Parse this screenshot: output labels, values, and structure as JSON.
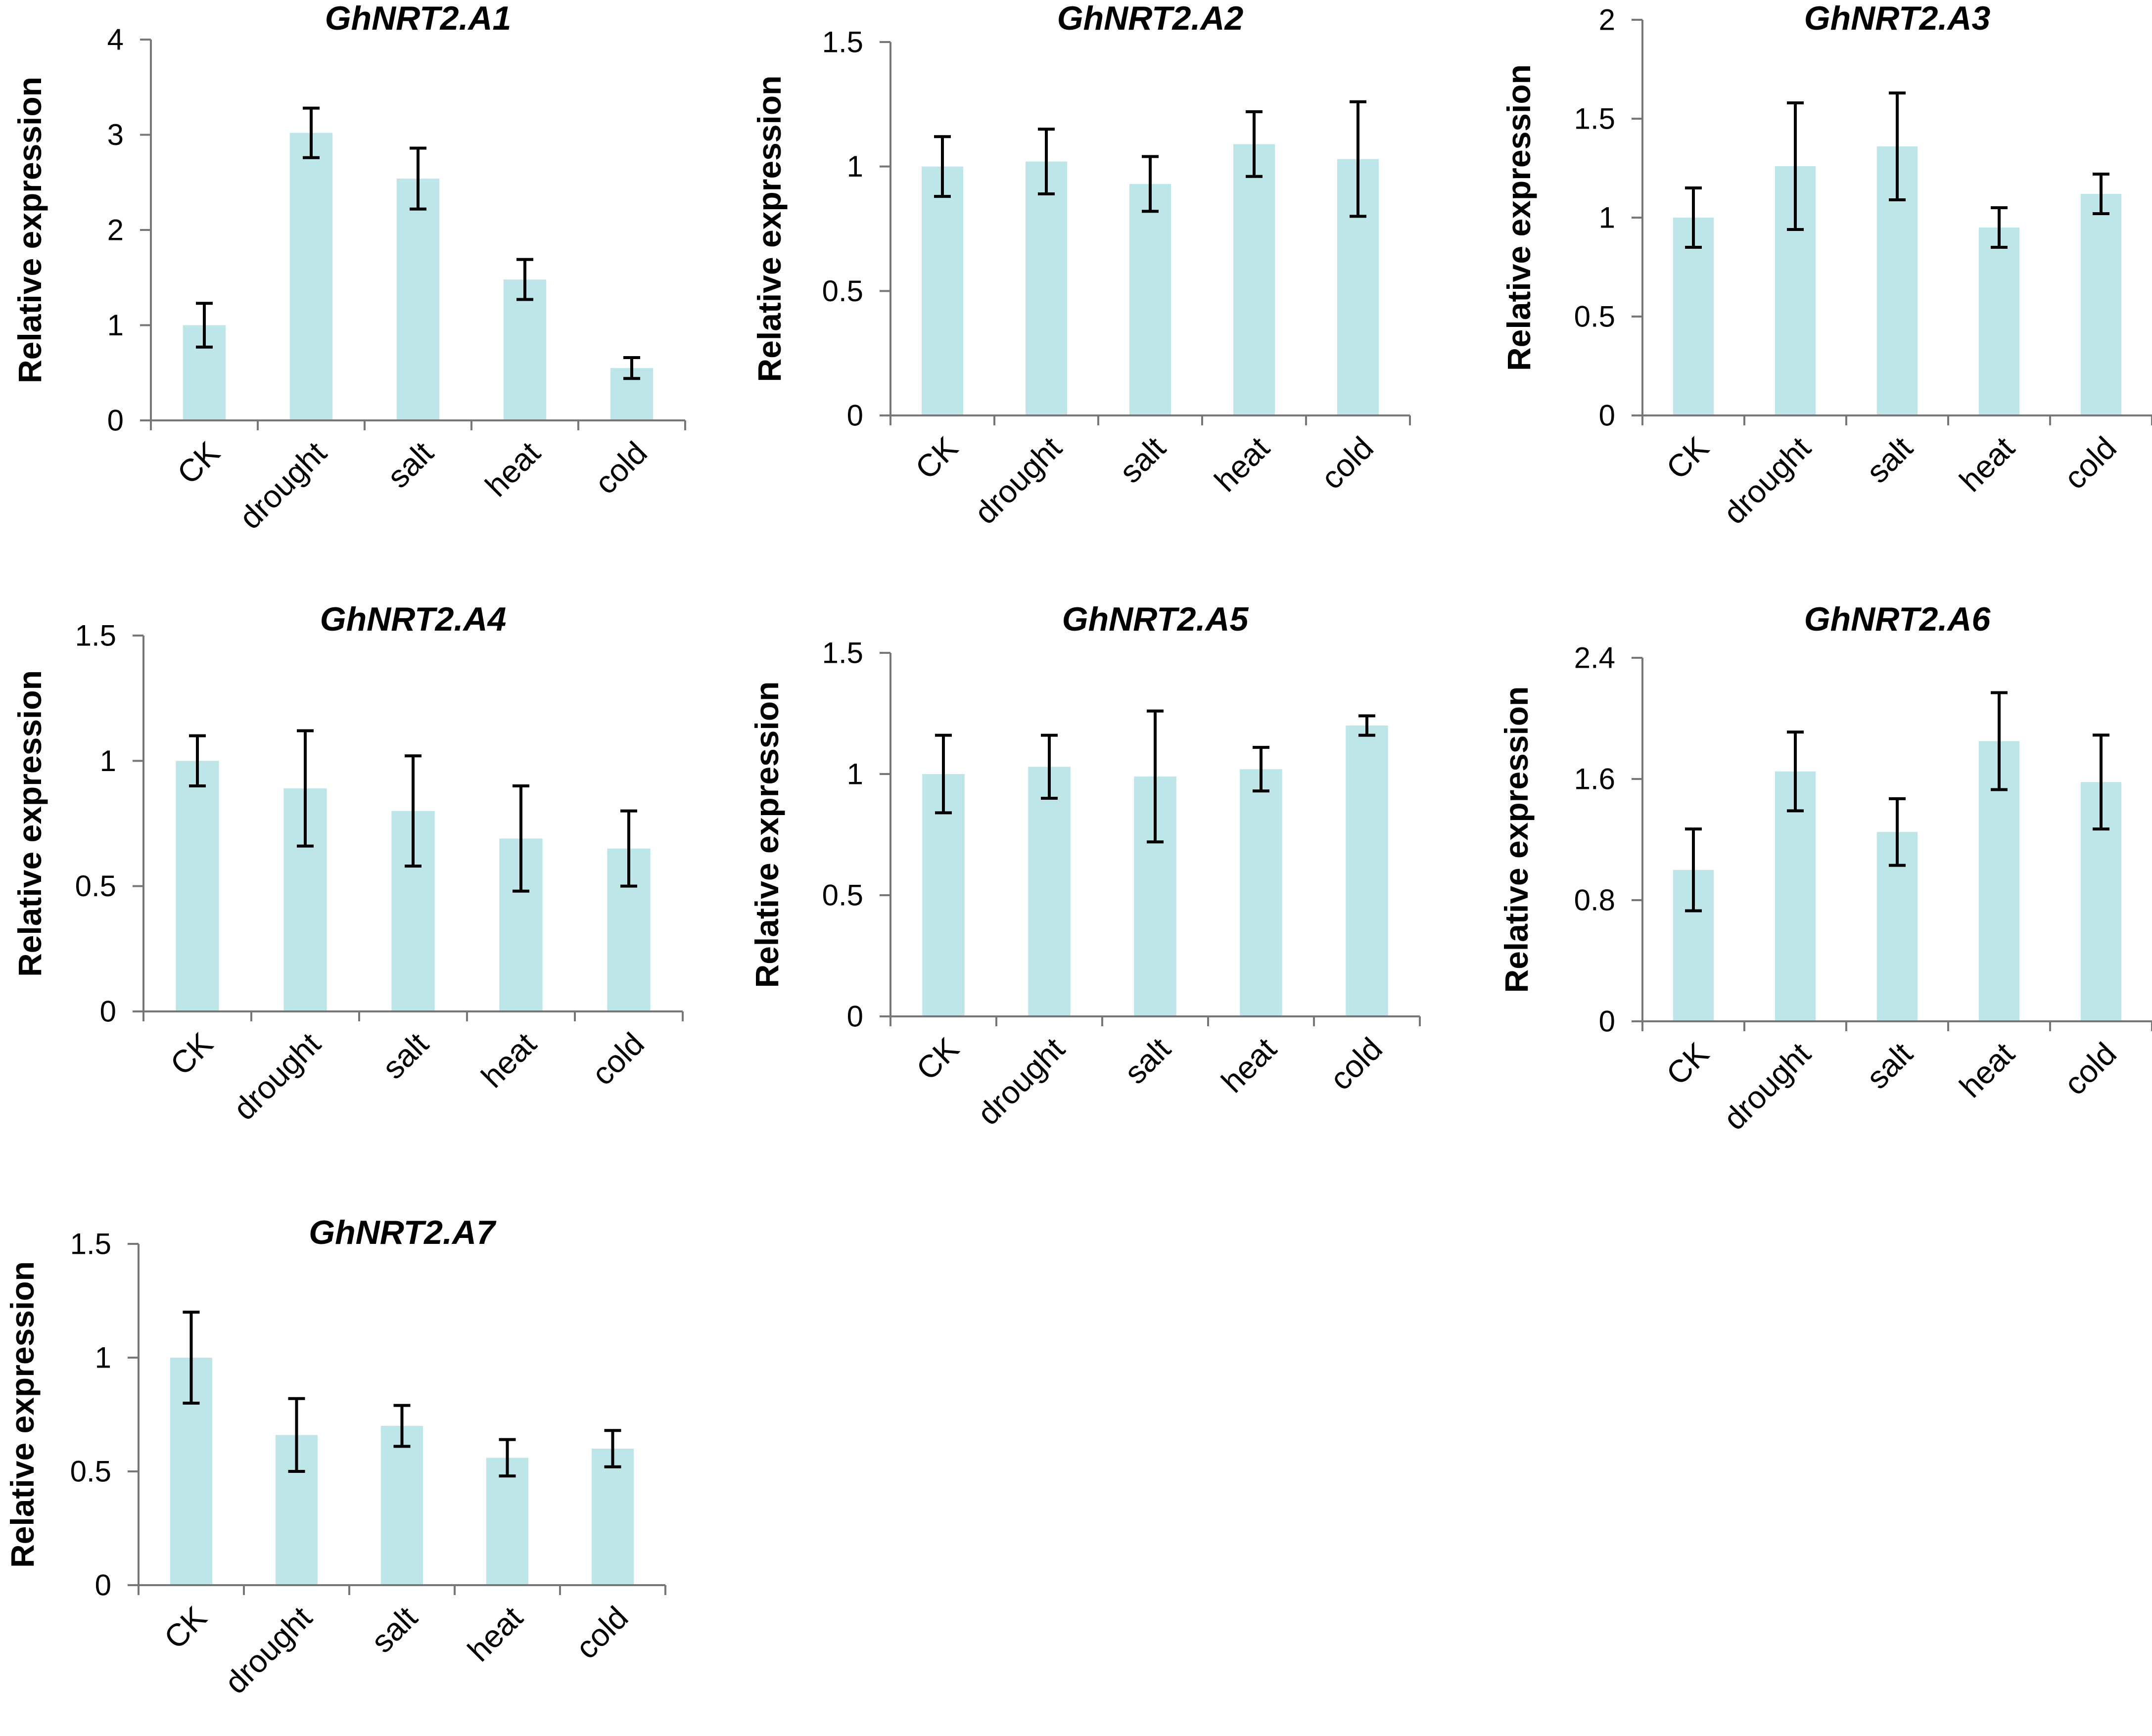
{
  "figure": {
    "bar_color": "#bee6e9",
    "axis_color": "#777777",
    "error_color": "#000000",
    "text_color": "#000000"
  },
  "chart_data": [
    {
      "type": "bar",
      "title": "GhNRT2.A1",
      "xlabel": "",
      "ylabel": "Relative expression",
      "categories": [
        "CK",
        "drought",
        "salt",
        "heat",
        "cold"
      ],
      "values": [
        1.0,
        3.02,
        2.54,
        1.48,
        0.55
      ],
      "errors": [
        0.23,
        0.26,
        0.32,
        0.21,
        0.11
      ],
      "ylim": [
        0,
        4
      ],
      "yticks": [
        0,
        1,
        2,
        3,
        4
      ],
      "ytick_labels": [
        "0",
        "1",
        "2",
        "3",
        "4"
      ]
    },
    {
      "type": "bar",
      "title": "GhNRT2.A2",
      "xlabel": "",
      "ylabel": "Relative expression",
      "categories": [
        "CK",
        "drought",
        "salt",
        "heat",
        "cold"
      ],
      "values": [
        1.0,
        1.02,
        0.93,
        1.09,
        1.03
      ],
      "errors": [
        0.12,
        0.13,
        0.11,
        0.13,
        0.23
      ],
      "ylim": [
        0,
        1.5
      ],
      "yticks": [
        0,
        0.5,
        1,
        1.5
      ],
      "ytick_labels": [
        "0",
        "0.5",
        "1",
        "1.5"
      ]
    },
    {
      "type": "bar",
      "title": "GhNRT2.A3",
      "xlabel": "",
      "ylabel": "Relative expression",
      "categories": [
        "CK",
        "drought",
        "salt",
        "heat",
        "cold"
      ],
      "values": [
        1.0,
        1.26,
        1.36,
        0.95,
        1.12
      ],
      "errors": [
        0.15,
        0.32,
        0.27,
        0.1,
        0.1
      ],
      "ylim": [
        0,
        2
      ],
      "yticks": [
        0,
        0.5,
        1,
        1.5,
        2
      ],
      "ytick_labels": [
        "0",
        "0.5",
        "1",
        "1.5",
        "2"
      ]
    },
    {
      "type": "bar",
      "title": "GhNRT2.A4",
      "xlabel": "",
      "ylabel": "Relative expression",
      "categories": [
        "CK",
        "drought",
        "salt",
        "heat",
        "cold"
      ],
      "values": [
        1.0,
        0.89,
        0.8,
        0.69,
        0.65
      ],
      "errors": [
        0.1,
        0.23,
        0.22,
        0.21,
        0.15
      ],
      "ylim": [
        0,
        1.5
      ],
      "yticks": [
        0,
        0.5,
        1,
        1.5
      ],
      "ytick_labels": [
        "0",
        "0.5",
        "1",
        "1.5"
      ]
    },
    {
      "type": "bar",
      "title": "GhNRT2.A5",
      "xlabel": "",
      "ylabel": "Relative expression",
      "categories": [
        "CK",
        "drought",
        "salt",
        "heat",
        "cold"
      ],
      "values": [
        1.0,
        1.03,
        0.99,
        1.02,
        1.2
      ],
      "errors": [
        0.16,
        0.13,
        0.27,
        0.09,
        0.04
      ],
      "ylim": [
        0,
        1.5
      ],
      "yticks": [
        0,
        0.5,
        1,
        1.5
      ],
      "ytick_labels": [
        "0",
        "0.5",
        "1",
        "1.5"
      ]
    },
    {
      "type": "bar",
      "title": "GhNRT2.A6",
      "xlabel": "",
      "ylabel": "Relative expression",
      "categories": [
        "CK",
        "drought",
        "salt",
        "heat",
        "cold"
      ],
      "values": [
        1.0,
        1.65,
        1.25,
        1.85,
        1.58
      ],
      "errors": [
        0.27,
        0.26,
        0.22,
        0.32,
        0.31
      ],
      "ylim": [
        0,
        2.4
      ],
      "yticks": [
        0,
        0.8,
        1.6,
        2.4
      ],
      "ytick_labels": [
        "0",
        "0.8",
        "1.6",
        "2.4"
      ]
    },
    {
      "type": "bar",
      "title": "GhNRT2.A7",
      "xlabel": "",
      "ylabel": "Relative expression",
      "categories": [
        "CK",
        "drought",
        "salt",
        "heat",
        "cold"
      ],
      "values": [
        1.0,
        0.66,
        0.7,
        0.56,
        0.6
      ],
      "errors": [
        0.2,
        0.16,
        0.09,
        0.08,
        0.08
      ],
      "ylim": [
        0,
        1.5
      ],
      "yticks": [
        0,
        0.5,
        1,
        1.5
      ],
      "ytick_labels": [
        "0",
        "0.5",
        "1",
        "1.5"
      ]
    }
  ]
}
